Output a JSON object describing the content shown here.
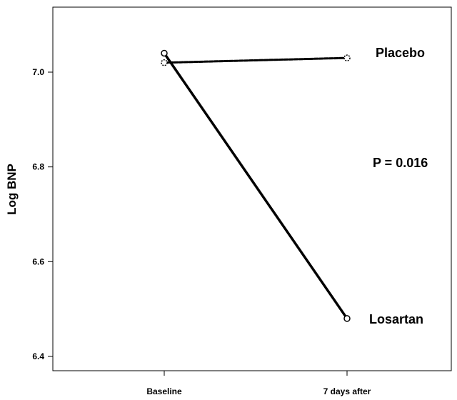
{
  "chart_data": {
    "type": "line",
    "categories": [
      "Baseline",
      "7 days after"
    ],
    "ylabel": "Log BNP",
    "ylim": [
      6.4,
      7.14
    ],
    "yticks": [
      "6.4",
      "6.6",
      "6.8",
      "7.0"
    ],
    "grid": false,
    "series": [
      {
        "name": "Placebo",
        "values": [
          7.02,
          7.03
        ],
        "line_style": "dashed",
        "color": "#000000"
      },
      {
        "name": "Losartan",
        "values": [
          7.04,
          6.48
        ],
        "line_style": "solid",
        "color": "#000000"
      }
    ],
    "annotations": [
      {
        "text": "P = 0.016"
      }
    ]
  }
}
